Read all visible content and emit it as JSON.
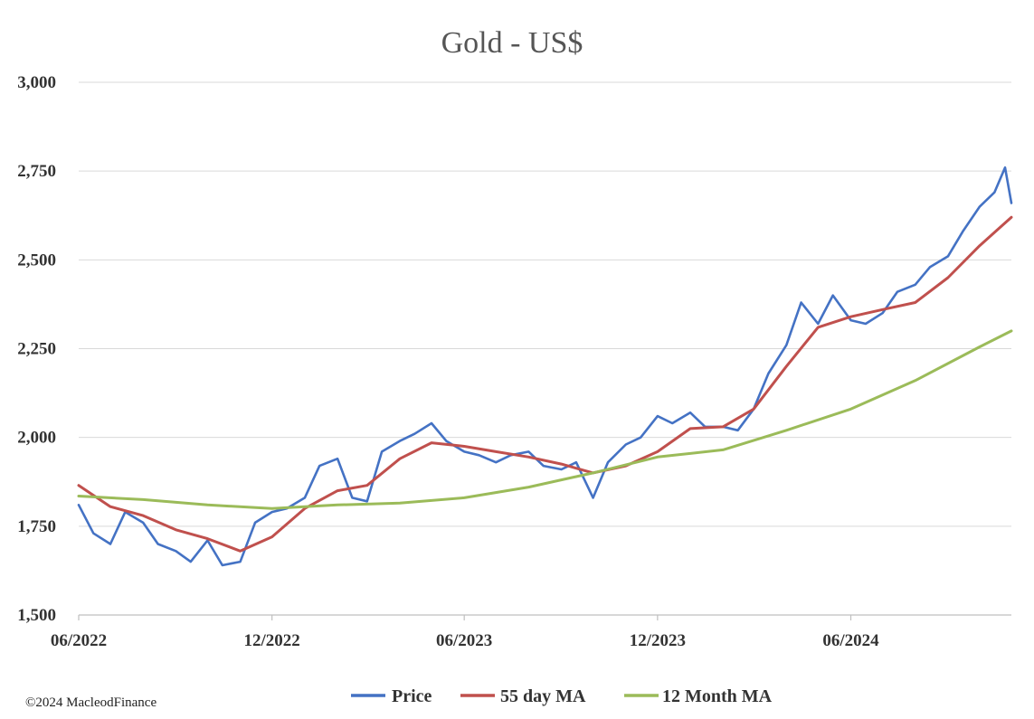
{
  "credit": "©2024 MacleodFinance",
  "chart_data": {
    "type": "line",
    "title": "Gold - US$",
    "xlabel": "",
    "ylabel": "",
    "x_ticks": [
      "06/2022",
      "12/2022",
      "06/2023",
      "12/2023",
      "06/2024"
    ],
    "y_ticks": [
      "1,500",
      "1,750",
      "2,000",
      "2,250",
      "2,500",
      "2,750",
      "3,000"
    ],
    "ylim": [
      1500,
      3000
    ],
    "xlim": [
      "2022-06-01",
      "2024-10-31"
    ],
    "grid": true,
    "legend_position": "bottom",
    "series": [
      {
        "name": "Price",
        "color": "#4472c4",
        "x": [
          "2022-06-01",
          "2022-06-15",
          "2022-07-01",
          "2022-07-15",
          "2022-08-01",
          "2022-08-15",
          "2022-09-01",
          "2022-09-15",
          "2022-10-01",
          "2022-10-15",
          "2022-11-01",
          "2022-11-15",
          "2022-12-01",
          "2022-12-15",
          "2023-01-01",
          "2023-01-15",
          "2023-02-01",
          "2023-02-15",
          "2023-03-01",
          "2023-03-15",
          "2023-04-01",
          "2023-04-15",
          "2023-05-01",
          "2023-05-15",
          "2023-06-01",
          "2023-06-15",
          "2023-07-01",
          "2023-07-15",
          "2023-08-01",
          "2023-08-15",
          "2023-09-01",
          "2023-09-15",
          "2023-10-01",
          "2023-10-15",
          "2023-11-01",
          "2023-11-15",
          "2023-12-01",
          "2023-12-15",
          "2024-01-01",
          "2024-01-15",
          "2024-02-01",
          "2024-02-15",
          "2024-03-01",
          "2024-03-15",
          "2024-04-01",
          "2024-04-15",
          "2024-05-01",
          "2024-05-15",
          "2024-06-01",
          "2024-06-15",
          "2024-07-01",
          "2024-07-15",
          "2024-08-01",
          "2024-08-15",
          "2024-09-01",
          "2024-09-15",
          "2024-10-01",
          "2024-10-15",
          "2024-10-25",
          "2024-10-31"
        ],
        "y": [
          1810,
          1730,
          1700,
          1790,
          1760,
          1700,
          1680,
          1650,
          1710,
          1640,
          1650,
          1760,
          1790,
          1800,
          1830,
          1920,
          1940,
          1830,
          1820,
          1960,
          1990,
          2010,
          2040,
          1990,
          1960,
          1950,
          1930,
          1950,
          1960,
          1920,
          1910,
          1930,
          1830,
          1930,
          1980,
          2000,
          2060,
          2040,
          2070,
          2030,
          2030,
          2020,
          2080,
          2180,
          2260,
          2380,
          2320,
          2400,
          2330,
          2320,
          2350,
          2410,
          2430,
          2480,
          2510,
          2580,
          2650,
          2690,
          2760,
          2660
        ]
      },
      {
        "name": "55 day MA",
        "color": "#c0504d",
        "x": [
          "2022-06-01",
          "2022-07-01",
          "2022-08-01",
          "2022-09-01",
          "2022-10-01",
          "2022-11-01",
          "2022-12-01",
          "2023-01-01",
          "2023-02-01",
          "2023-03-01",
          "2023-04-01",
          "2023-05-01",
          "2023-06-01",
          "2023-07-01",
          "2023-08-01",
          "2023-09-01",
          "2023-10-01",
          "2023-11-01",
          "2023-12-01",
          "2024-01-01",
          "2024-02-01",
          "2024-03-01",
          "2024-04-01",
          "2024-05-01",
          "2024-06-01",
          "2024-07-01",
          "2024-08-01",
          "2024-09-01",
          "2024-10-01",
          "2024-10-31"
        ],
        "y": [
          1865,
          1805,
          1780,
          1740,
          1715,
          1680,
          1720,
          1800,
          1850,
          1865,
          1940,
          1985,
          1975,
          1960,
          1945,
          1925,
          1900,
          1920,
          1960,
          2025,
          2030,
          2080,
          2200,
          2310,
          2340,
          2360,
          2380,
          2450,
          2540,
          2620
        ]
      },
      {
        "name": "12 Month MA",
        "color": "#9bbb59",
        "x": [
          "2022-06-01",
          "2022-08-01",
          "2022-10-01",
          "2022-12-01",
          "2023-02-01",
          "2023-04-01",
          "2023-06-01",
          "2023-08-01",
          "2023-10-01",
          "2023-12-01",
          "2024-02-01",
          "2024-04-01",
          "2024-06-01",
          "2024-08-01",
          "2024-10-01",
          "2024-10-31"
        ],
        "y": [
          1835,
          1825,
          1810,
          1800,
          1810,
          1815,
          1830,
          1860,
          1900,
          1945,
          1965,
          2020,
          2080,
          2160,
          2255,
          2300
        ]
      }
    ]
  }
}
